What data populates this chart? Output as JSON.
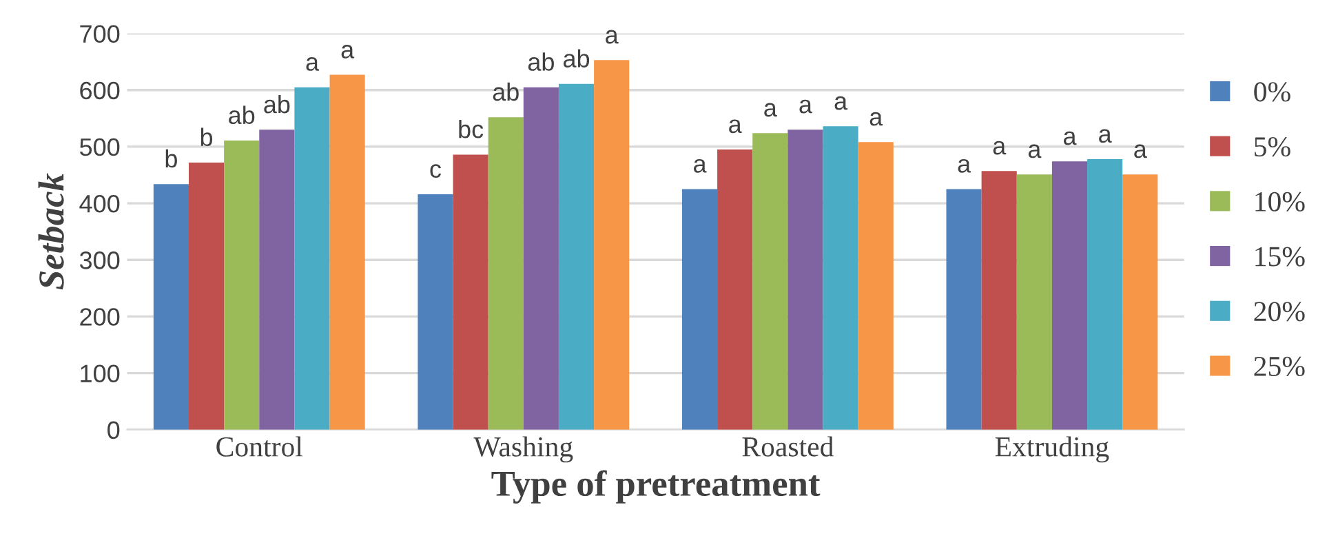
{
  "chart_data": {
    "type": "bar",
    "xlabel": "Type of pretreatment",
    "ylabel": "Setback",
    "categories": [
      "Control",
      "Washing",
      "Roasted",
      "Extruding"
    ],
    "series": [
      {
        "name": "0%",
        "color": "#4f81bd",
        "values": [
          434,
          416,
          425,
          425
        ],
        "value_labels": [
          "b",
          "c",
          "a",
          "a"
        ]
      },
      {
        "name": "5%",
        "color": "#c0504d",
        "values": [
          472,
          486,
          495,
          457
        ],
        "value_labels": [
          "b",
          "bc",
          "a",
          "a"
        ]
      },
      {
        "name": "10%",
        "color": "#9bbb59",
        "values": [
          511,
          552,
          524,
          451
        ],
        "value_labels": [
          "ab",
          "ab",
          "a",
          "a"
        ]
      },
      {
        "name": "15%",
        "color": "#8064a2",
        "values": [
          530,
          605,
          530,
          474
        ],
        "value_labels": [
          "ab",
          "ab",
          "a",
          "a"
        ]
      },
      {
        "name": "20%",
        "color": "#4bacc6",
        "values": [
          605,
          611,
          536,
          478
        ],
        "value_labels": [
          "a",
          "ab",
          "a",
          "a"
        ]
      },
      {
        "name": "25%",
        "color": "#f79646",
        "values": [
          627,
          653,
          508,
          451
        ],
        "value_labels": [
          "a",
          "a",
          "a",
          "a"
        ]
      }
    ],
    "ylim": [
      0,
      700
    ],
    "yticks": [
      0,
      100,
      200,
      300,
      400,
      500,
      600,
      700
    ],
    "grid": "y",
    "legend": "right"
  }
}
